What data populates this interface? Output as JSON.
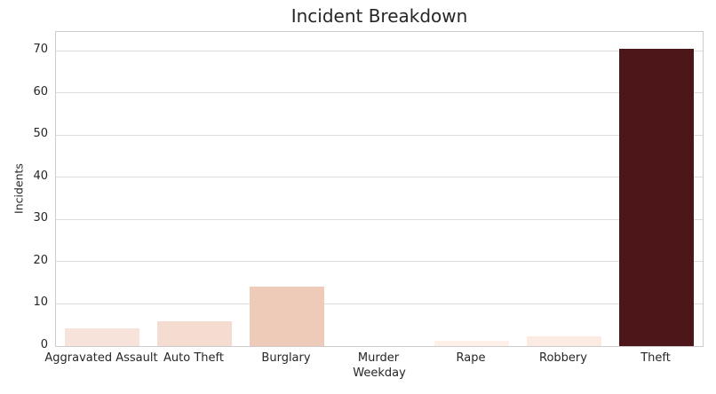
{
  "chart_data": {
    "type": "bar",
    "title": "Incident Breakdown",
    "xlabel": "Weekday",
    "ylabel": "Incidents",
    "categories": [
      "Aggravated Assault",
      "Auto Theft",
      "Burglary",
      "Murder",
      "Rape",
      "Robbery",
      "Theft"
    ],
    "values": [
      4.3,
      5.9,
      14.2,
      0,
      1.3,
      2.4,
      70.5
    ],
    "bar_colors": [
      "#f7e3da",
      "#f5dcd1",
      "#eecab8",
      "#fff5f0",
      "#fdf1ea",
      "#fbebe2",
      "#4d1619"
    ],
    "yticks": [
      0,
      10,
      20,
      30,
      40,
      50,
      60,
      70
    ],
    "ylim": [
      0,
      74.5
    ],
    "grid": true,
    "legend": "none",
    "background_color": "#ffffff",
    "plot_border_color": "#cccccc",
    "gridline_color": "#dddddd",
    "text_color": "#262626"
  }
}
